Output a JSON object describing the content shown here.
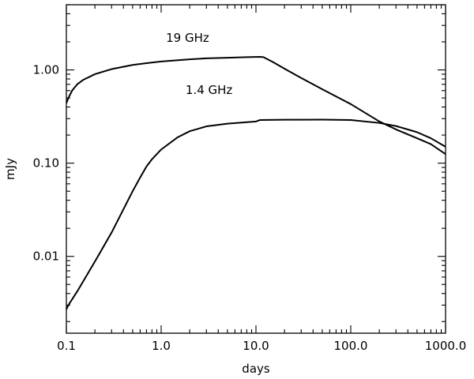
{
  "chart_data": {
    "type": "line",
    "title": "",
    "xlabel": "days",
    "ylabel": "mJy",
    "x_scale": "log",
    "y_scale": "log",
    "xlim": [
      0.1,
      1000
    ],
    "ylim": [
      0.0015,
      5
    ],
    "grid": false,
    "x_ticks": [
      {
        "value": 0.1,
        "label": "0.1"
      },
      {
        "value": 1,
        "label": "1.0"
      },
      {
        "value": 10,
        "label": "10.0"
      },
      {
        "value": 100,
        "label": "100.0"
      },
      {
        "value": 1000,
        "label": "1000.0"
      }
    ],
    "y_ticks": [
      {
        "value": 0.01,
        "label": "0.01"
      },
      {
        "value": 0.1,
        "label": "0.10"
      },
      {
        "value": 1,
        "label": "1.00"
      }
    ],
    "series": [
      {
        "name": "19 GHz",
        "label_at": [
          1.9,
          2.0
        ],
        "points": [
          [
            0.1,
            0.44
          ],
          [
            0.105,
            0.5
          ],
          [
            0.115,
            0.6
          ],
          [
            0.13,
            0.7
          ],
          [
            0.15,
            0.78
          ],
          [
            0.2,
            0.9
          ],
          [
            0.3,
            1.02
          ],
          [
            0.5,
            1.13
          ],
          [
            0.7,
            1.18
          ],
          [
            1.0,
            1.23
          ],
          [
            2.0,
            1.3
          ],
          [
            3.0,
            1.33
          ],
          [
            5.0,
            1.35
          ],
          [
            8.0,
            1.37
          ],
          [
            11.0,
            1.38
          ],
          [
            12.0,
            1.37
          ],
          [
            15.0,
            1.22
          ],
          [
            20.0,
            1.03
          ],
          [
            30.0,
            0.82
          ],
          [
            50.0,
            0.62
          ],
          [
            100.0,
            0.43
          ],
          [
            200.0,
            0.28
          ],
          [
            300.0,
            0.23
          ],
          [
            500.0,
            0.185
          ],
          [
            700.0,
            0.16
          ],
          [
            1000.0,
            0.125
          ]
        ]
      },
      {
        "name": "1.4 GHz",
        "label_at": [
          3.2,
          0.55
        ],
        "points": [
          [
            0.1,
            0.0027
          ],
          [
            0.105,
            0.003
          ],
          [
            0.13,
            0.0042
          ],
          [
            0.2,
            0.0088
          ],
          [
            0.3,
            0.018
          ],
          [
            0.4,
            0.032
          ],
          [
            0.5,
            0.05
          ],
          [
            0.6,
            0.07
          ],
          [
            0.7,
            0.092
          ],
          [
            0.8,
            0.11
          ],
          [
            1.0,
            0.14
          ],
          [
            1.5,
            0.19
          ],
          [
            2.0,
            0.22
          ],
          [
            3.0,
            0.248
          ],
          [
            5.0,
            0.265
          ],
          [
            10.0,
            0.28
          ],
          [
            11.0,
            0.29
          ],
          [
            20.0,
            0.292
          ],
          [
            50.0,
            0.293
          ],
          [
            100.0,
            0.29
          ],
          [
            200.0,
            0.27
          ],
          [
            300.0,
            0.25
          ],
          [
            500.0,
            0.215
          ],
          [
            700.0,
            0.185
          ],
          [
            1000.0,
            0.15
          ]
        ]
      }
    ]
  }
}
